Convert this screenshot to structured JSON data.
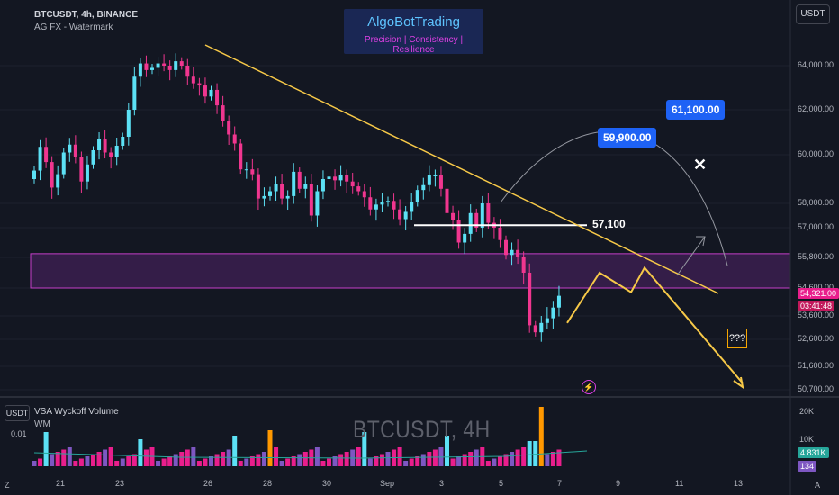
{
  "header": {
    "symbol_line": "BTCUSDT, 4h, BINANCE",
    "watermark_line": "AG FX - Watermark"
  },
  "brand": {
    "title": "AlgoBotTrading",
    "subtitle": "Precision  | Consistency | Resilience"
  },
  "currency_button": "USDT",
  "price_axis": [
    "64,000.00",
    "62,000.00",
    "60,000.00",
    "58,000.00",
    "57,000.00",
    "55,800.00",
    "54,600.00",
    "53,600.00",
    "52,600.00",
    "51,600.00",
    "50,700.00"
  ],
  "price_tags": {
    "current_price": "54,321.00",
    "countdown": "03:41:48",
    "current_bg": "#e91e8c",
    "countdown_bg": "#c2185b"
  },
  "time_axis": [
    "21",
    "23",
    "26",
    "28",
    "30",
    "Sep",
    "3",
    "5",
    "7",
    "9",
    "11",
    "13"
  ],
  "volume_pane": {
    "unit_label": "USDT",
    "indicator": "VSA Wyckoff Volume",
    "indicator_sub": "WM",
    "left_tick": "0.01",
    "axis": [
      "20K",
      "10K"
    ],
    "tags": [
      "4.831K",
      "134"
    ],
    "watermark": "BTCUSDT, 4H",
    "tag_colors": [
      "#26a69a",
      "#7e57c2"
    ]
  },
  "annotations": {
    "level_57100": "57,100",
    "target_1": "59,900.00",
    "target_2": "61,100.00",
    "question": "???",
    "x_mark": "✕",
    "bolt": "⚡"
  },
  "colors": {
    "up": "#5ce1f5",
    "down": "#f0368f",
    "trend": "#f7c948",
    "zone_fill": "#3b1f4f",
    "zone_border": "#c53ec9",
    "vol_up": "#e91e8c",
    "vol_down": "#7e57c2",
    "vol_spike_up": "#5ce1f5",
    "vol_spike_orange": "#ff9800"
  },
  "chart_data": {
    "type": "candlestick",
    "title": "BTCUSDT, 4h, BINANCE",
    "ylim": [
      50500,
      65000
    ],
    "zone": [
      54600,
      55950
    ],
    "levels": {
      "horizontal": 57100
    },
    "candles_close": [
      59350,
      60350,
      59700,
      58650,
      59200,
      60100,
      60450,
      59900,
      58900,
      59600,
      60200,
      60700,
      60100,
      59900,
      60400,
      60800,
      62000,
      63500,
      64100,
      63800,
      63900,
      64100,
      64000,
      63800,
      64200,
      64000,
      63500,
      63200,
      63100,
      62600,
      62900,
      62200,
      61500,
      60900,
      60500,
      59400,
      59400,
      59200,
      58200,
      58300,
      58500,
      58800,
      58200,
      58300,
      59300,
      58600,
      58800,
      57500,
      58500,
      59000,
      59100,
      58950,
      59150,
      58900,
      58700,
      58500,
      58250,
      57750,
      57950,
      58050,
      58100,
      57750,
      57350,
      57650,
      58050,
      58550,
      58750,
      59150,
      59150,
      58600,
      57600,
      57300,
      56400,
      56750,
      57600,
      57000,
      58000,
      57200,
      57000,
      56500,
      55900,
      56100,
      55800,
      55200,
      53200,
      52900,
      53300,
      53500,
      53900,
      54321
    ],
    "projection_path": [
      [
        54400,
        53300
      ],
      [
        55300,
        54600
      ],
      [
        54400,
        55400
      ],
      [
        54500,
        50900
      ]
    ],
    "arc_targets": [
      59900,
      61100
    ]
  }
}
